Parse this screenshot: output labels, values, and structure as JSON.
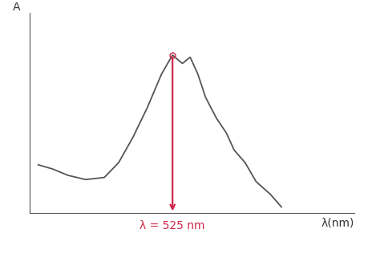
{
  "chart_data": {
    "type": "line",
    "x_label": "λ(nm)",
    "y_label": "A",
    "x": [
      403,
      416,
      430,
      446,
      463,
      476,
      489,
      502,
      515,
      525,
      534,
      541,
      548,
      555,
      565,
      574,
      581,
      591,
      601,
      614,
      624
    ],
    "values": [
      0.23,
      0.21,
      0.18,
      0.16,
      0.17,
      0.24,
      0.36,
      0.5,
      0.66,
      0.75,
      0.71,
      0.74,
      0.66,
      0.55,
      0.45,
      0.38,
      0.3,
      0.24,
      0.15,
      0.09,
      0.03
    ],
    "color": "#555555",
    "xlim": [
      395,
      690
    ],
    "ylim": [
      0,
      0.95
    ],
    "xticks": [],
    "yticks": [],
    "tick_labels": false,
    "grid": false,
    "annotations": [
      {
        "text": "λ = 525 nm",
        "x": 525,
        "y": 0.75,
        "color": "#d0284a"
      }
    ]
  }
}
